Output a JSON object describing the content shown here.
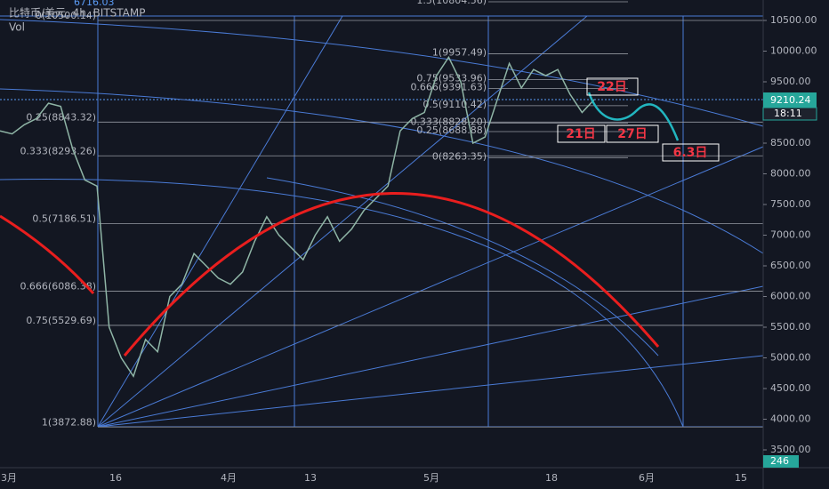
{
  "header": {
    "title": "比特币/美元, 4h, BITSTAMP",
    "volume_label": "Vol",
    "top_value": "6716.03"
  },
  "chart_data": {
    "type": "line",
    "color": "#8fb5a6",
    "ylim": [
      3500,
      10500
    ],
    "yticks": [
      3500,
      4000,
      4500,
      5000,
      5500,
      6000,
      6500,
      7000,
      7500,
      8000,
      8500,
      9000,
      9500,
      10000,
      10500
    ],
    "ytick_labels": [
      "3500.00",
      "4000.00",
      "4500.00",
      "5000.00",
      "5500.00",
      "6000.00",
      "6500.00",
      "7000.00",
      "7500.00",
      "8000.00",
      "8500.00",
      "9000.00",
      "9500.00",
      "10000.00",
      "10500.00"
    ],
    "x_tick_labels": [
      "3月",
      "16",
      "4月",
      "13",
      "5月",
      "18",
      "6月",
      "15"
    ],
    "values": [
      8700,
      8650,
      8800,
      8900,
      9150,
      9100,
      8400,
      7900,
      7800,
      5500,
      5000,
      4700,
      5300,
      5100,
      6000,
      6200,
      6700,
      6500,
      6300,
      6200,
      6400,
      6900,
      7300,
      7000,
      6800,
      6600,
      7000,
      7300,
      6900,
      7100,
      7400,
      7600,
      7800,
      8700,
      8900,
      9000,
      9600,
      9900,
      9500,
      8500,
      8600,
      9200,
      9800,
      9400,
      9700,
      9600,
      9700,
      9300,
      9000,
      9210
    ]
  },
  "fib_left": [
    {
      "label": "0(10500.14)",
      "price": 10500.14
    },
    {
      "label": "0.25(8843.32)",
      "price": 8843.32
    },
    {
      "label": "0.333(8293.26)",
      "price": 8293.26
    },
    {
      "label": "0.5(7186.51)",
      "price": 7186.51
    },
    {
      "label": "0.666(6086.38)",
      "price": 6086.38
    },
    {
      "label": "0.75(5529.69)",
      "price": 5529.69
    },
    {
      "label": "1(3872.88)",
      "price": 3872.88
    }
  ],
  "fib_right": [
    {
      "label": "1.5(10804.56)",
      "price": 10804.56
    },
    {
      "label": "1(9957.49)",
      "price": 9957.49
    },
    {
      "label": "0.75(9533.96)",
      "price": 9533.96
    },
    {
      "label": "0.666(9391.63)",
      "price": 9391.63
    },
    {
      "label": "0.5(9110.42)",
      "price": 9110.42
    },
    {
      "label": "0.333(8828.20)",
      "price": 8828.2
    },
    {
      "label": "0.25(8688.88)",
      "price": 8688.88
    },
    {
      "label": "0(8263.35)",
      "price": 8263.35
    }
  ],
  "annotations": [
    "22日",
    "21日",
    "27日",
    "6.3日"
  ],
  "price_tag": {
    "price": "9210.24",
    "time": "18:11",
    "volume": "246"
  }
}
